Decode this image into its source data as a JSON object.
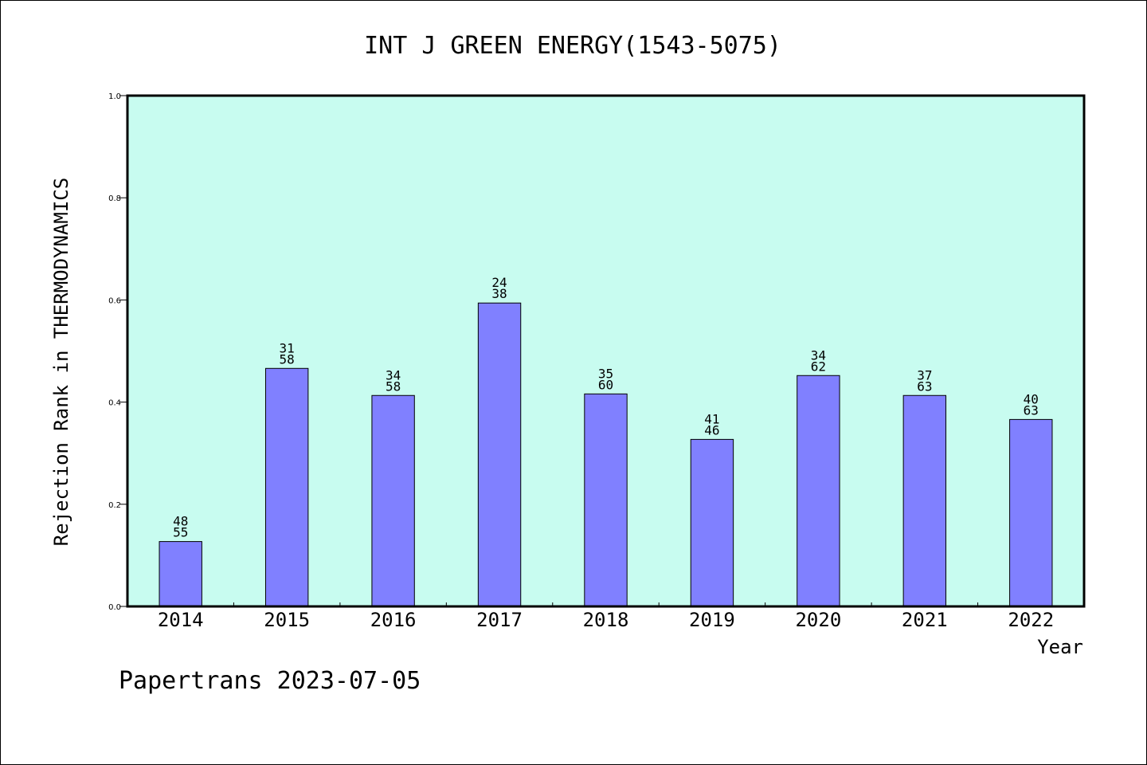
{
  "colors": {
    "plot_background": "#c8fcf0",
    "bar_fill": "#8080ff",
    "bar_stroke": "#000000",
    "frame": "#000000"
  },
  "footer": "Papertrans 2023-07-05",
  "chart_data": {
    "type": "bar",
    "title": "INT J GREEN ENERGY(1543-5075)",
    "xlabel": "Year",
    "ylabel": "Rejection Rank in THERMODYNAMICS",
    "ylim": [
      0,
      1.0
    ],
    "yticks": [
      "0.0",
      "0.2",
      "0.4",
      "0.6",
      "0.8",
      "1.0"
    ],
    "grid": false,
    "categories": [
      "2014",
      "2015",
      "2016",
      "2017",
      "2018",
      "2019",
      "2020",
      "2021",
      "2022"
    ],
    "values": [
      0.127,
      0.466,
      0.413,
      0.594,
      0.416,
      0.327,
      0.452,
      0.413,
      0.366
    ],
    "labels_top": [
      "48",
      "31",
      "34",
      "24",
      "35",
      "41",
      "34",
      "37",
      "40"
    ],
    "labels_bottom": [
      "55",
      "58",
      "58",
      "38",
      "60",
      "46",
      "62",
      "63",
      "63"
    ]
  }
}
